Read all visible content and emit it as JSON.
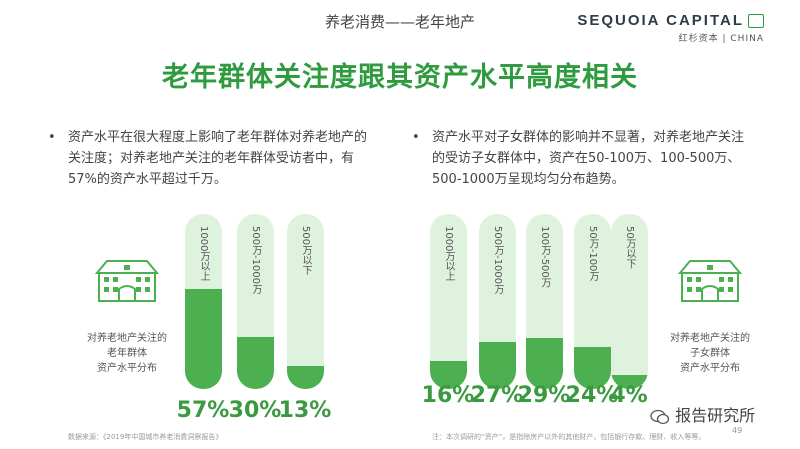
{
  "header": {
    "subtitle": "养老消费——老年地产",
    "title": "老年群体关注度跟其资产水平高度相关",
    "brand_name": "SEQUOIA CAPITAL",
    "brand_sub": "红杉资本 | CHINA"
  },
  "left": {
    "bullet": "资产水平在很大程度上影响了老年群体对养老地产的关注度；对养老地产关注的老年群体受访者中，有57%的资产水平超过千万。",
    "caption": [
      "对养老地产关注的",
      "老年群体",
      "资产水平分布"
    ],
    "source": "数据来源：《2019年中国城市养老消费洞察报告》"
  },
  "right": {
    "bullet": "资产水平对子女群体的影响并不显著，对养老地产关注的受访子女群体中，资产在50-100万、100-500万、500-1000万呈现均匀分布趋势。",
    "caption": [
      "对养老地产关注的",
      "子女群体",
      "资产水平分布"
    ],
    "note": "注：本次调研的“资产”，是指除房产以外的其他财产，包括银行存款、理财、收入等等。"
  },
  "chart_data": [
    {
      "type": "bar",
      "title": "",
      "categories": [
        "1000万以上",
        "500万-1000万",
        "500万以下"
      ],
      "values": [
        57,
        30,
        13
      ],
      "value_labels": [
        "57%",
        "30%",
        "13%"
      ],
      "ylim": [
        0,
        100
      ],
      "colors": {
        "fill": "#4caf50",
        "track": "#dff2de",
        "label": "#3a9a3f"
      }
    },
    {
      "type": "bar",
      "title": "",
      "categories": [
        "1000万以上",
        "500万-1000万",
        "100万-500万",
        "50万-100万",
        "50万以下"
      ],
      "values": [
        16,
        27,
        29,
        24,
        4
      ],
      "value_labels": [
        "16%",
        "27%",
        "29%",
        "24%",
        "4%"
      ],
      "ylim": [
        0,
        100
      ],
      "colors": {
        "fill": "#4caf50",
        "track": "#dff2de",
        "label": "#3a9a3f"
      }
    }
  ],
  "page_number": "49",
  "watermark": "报告研究所"
}
